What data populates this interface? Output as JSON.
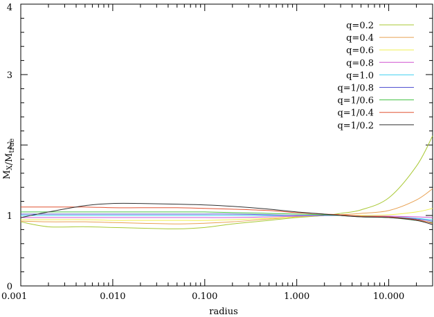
{
  "chart_data": {
    "type": "line",
    "xlabel": "radius",
    "ylabel": "M_X/M_true",
    "xscale": "log",
    "xlim": [
      0.001,
      30
    ],
    "ylim": [
      0,
      4
    ],
    "legend_placement": "top-right",
    "grid": false,
    "x_ticks": [
      {
        "value": 0.001,
        "label": "0.001"
      },
      {
        "value": 0.01,
        "label": "0.010"
      },
      {
        "value": 0.1,
        "label": "0.100"
      },
      {
        "value": 1,
        "label": "1.000"
      },
      {
        "value": 10,
        "label": "10.000"
      }
    ],
    "y_ticks": [
      {
        "value": 0,
        "label": "0"
      },
      {
        "value": 1,
        "label": "1"
      },
      {
        "value": 2,
        "label": "2"
      },
      {
        "value": 3,
        "label": "3"
      },
      {
        "value": 4,
        "label": "4"
      }
    ],
    "x": [
      0.001,
      0.002,
      0.005,
      0.01,
      0.02,
      0.05,
      0.1,
      0.2,
      0.5,
      1,
      2,
      3,
      5,
      10,
      20,
      30
    ],
    "series": [
      {
        "name": "q=0.2",
        "color": "#a8c832",
        "values": [
          0.91,
          0.84,
          0.84,
          0.83,
          0.82,
          0.81,
          0.83,
          0.88,
          0.93,
          0.97,
          1.0,
          1.03,
          1.08,
          1.25,
          1.7,
          2.13
        ]
      },
      {
        "name": "q=0.4",
        "color": "#e8a050",
        "values": [
          0.92,
          0.91,
          0.91,
          0.9,
          0.89,
          0.88,
          0.89,
          0.91,
          0.95,
          0.98,
          1.0,
          1.01,
          1.03,
          1.07,
          1.22,
          1.38
        ]
      },
      {
        "name": "q=0.6",
        "color": "#f0f050",
        "values": [
          0.94,
          0.94,
          0.94,
          0.93,
          0.93,
          0.93,
          0.93,
          0.94,
          0.96,
          0.98,
          1.0,
          1.0,
          1.0,
          1.01,
          1.05,
          1.1
        ]
      },
      {
        "name": "q=0.8",
        "color": "#d050d0",
        "values": [
          0.97,
          0.97,
          0.97,
          0.97,
          0.97,
          0.97,
          0.97,
          0.97,
          0.98,
          0.99,
          1.0,
          1.0,
          0.99,
          0.99,
          0.98,
          0.97
        ]
      },
      {
        "name": "q=1.0",
        "color": "#40d0f0",
        "values": [
          1.0,
          1.0,
          1.0,
          1.0,
          1.0,
          1.0,
          1.0,
          1.0,
          1.0,
          1.0,
          1.0,
          1.0,
          0.99,
          0.98,
          0.96,
          0.94
        ]
      },
      {
        "name": "q=1/0.8",
        "color": "#5050d0",
        "values": [
          1.02,
          1.02,
          1.02,
          1.02,
          1.02,
          1.02,
          1.02,
          1.02,
          1.01,
          1.0,
          1.0,
          1.0,
          0.99,
          0.98,
          0.95,
          0.92
        ]
      },
      {
        "name": "q=1/0.6",
        "color": "#40c040",
        "values": [
          1.05,
          1.05,
          1.05,
          1.05,
          1.05,
          1.05,
          1.05,
          1.04,
          1.03,
          1.02,
          1.01,
          1.0,
          0.98,
          0.97,
          0.93,
          0.9
        ]
      },
      {
        "name": "q=1/0.4",
        "color": "#e05030",
        "values": [
          1.12,
          1.12,
          1.12,
          1.11,
          1.11,
          1.11,
          1.1,
          1.09,
          1.07,
          1.04,
          1.02,
          1.01,
          0.99,
          0.98,
          0.94,
          0.89
        ]
      },
      {
        "name": "q=1/0.2",
        "color": "#303030",
        "values": [
          0.97,
          1.05,
          1.14,
          1.17,
          1.17,
          1.16,
          1.15,
          1.13,
          1.09,
          1.05,
          1.02,
          1.0,
          0.98,
          0.97,
          0.93,
          0.87
        ]
      }
    ]
  }
}
